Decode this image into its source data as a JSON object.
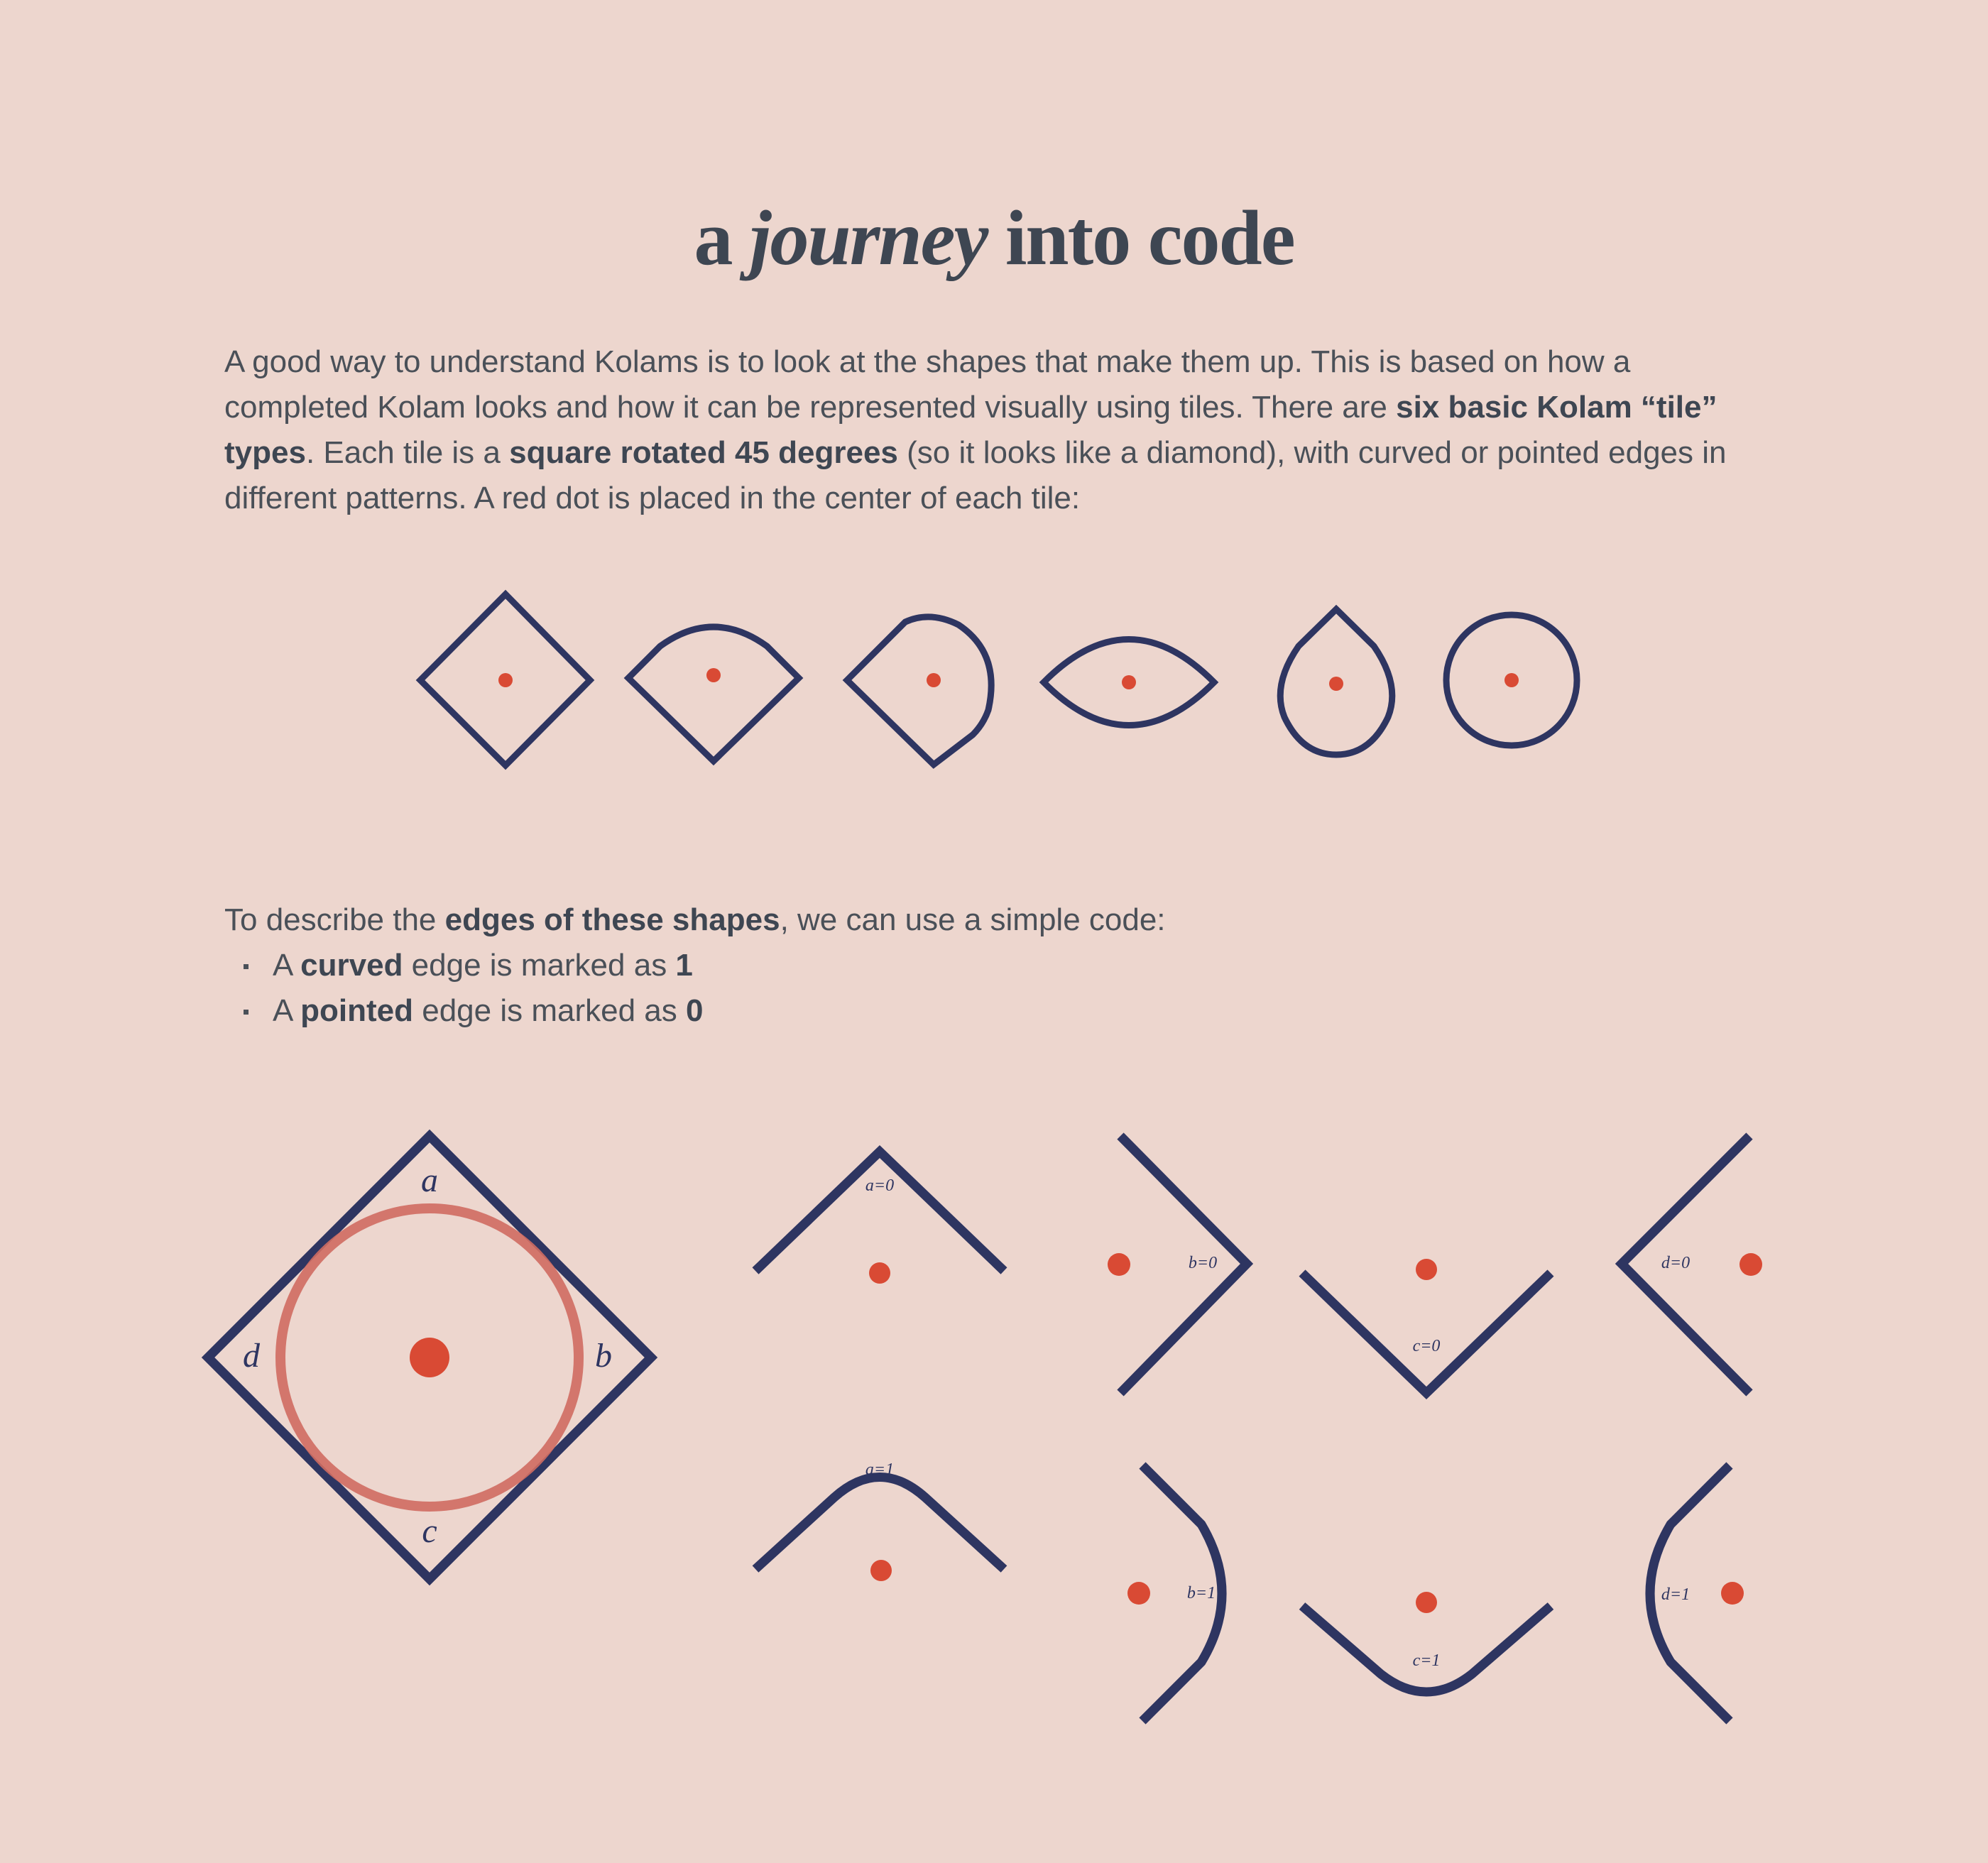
{
  "title": {
    "pre": "a",
    "italic": "journey",
    "post": "into code"
  },
  "intro": {
    "t1": "A good way to understand Kolams is to look at the shapes that make them up. This is based on how a completed Kolam looks and how it can be represented visually using tiles. There are ",
    "b1": "six basic Kolam “tile” types",
    "t2": ". Each tile is a ",
    "b2": "square rotated 45 degrees",
    "t3": " (so it looks like a diamond), with curved or pointed edges in different patterns. A red dot is placed in the center of each tile:"
  },
  "code": {
    "t1": "To describe the ",
    "b1": "edges of these shapes",
    "t2": ", we can use a simple code:"
  },
  "bullets": [
    {
      "pre": "A ",
      "bold": "curved",
      "mid": " edge is marked as ",
      "val": "1"
    },
    {
      "pre": "A ",
      "bold": "pointed",
      "mid": " edge is marked as ",
      "val": "0"
    }
  ],
  "tile_types": [
    "pointed-diamond",
    "one-curved",
    "two-curved",
    "eye",
    "drop",
    "circle"
  ],
  "diagram": {
    "edge_labels": [
      "a",
      "b",
      "c",
      "d"
    ],
    "pointed_labels": [
      "a=0",
      "b=0",
      "c=0",
      "d=0"
    ],
    "curved_labels": [
      "a=1",
      "b=1",
      "c=1",
      "d=1"
    ]
  },
  "colors": {
    "background": "#edd6ce",
    "line": "#2e3561",
    "dot": "#d94a34",
    "circle": "#cf6c62"
  }
}
